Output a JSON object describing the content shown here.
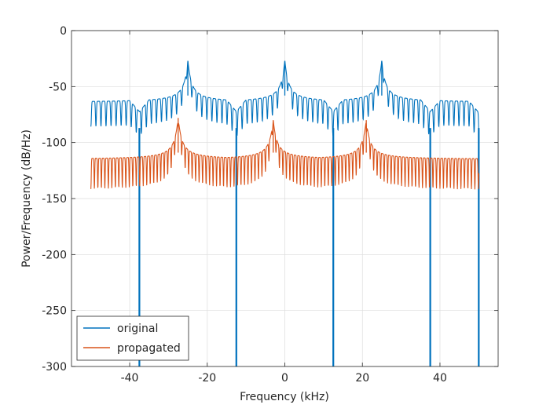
{
  "chart_data": {
    "type": "line",
    "title": "",
    "xlabel": "Frequency (kHz)",
    "ylabel": "Power/Frequency (dB/Hz)",
    "xlim": [
      -55,
      55
    ],
    "ylim": [
      -300,
      0
    ],
    "x_ticks": [
      -40,
      -20,
      0,
      20,
      40
    ],
    "y_ticks": [
      0,
      -50,
      -100,
      -150,
      -200,
      -250,
      -300
    ],
    "x_tick_labels": [
      "-40",
      "-20",
      "0",
      "20",
      "40"
    ],
    "y_tick_labels": [
      "0",
      "-50",
      "-100",
      "-150",
      "-200",
      "-250",
      "-300"
    ],
    "grid": true,
    "legend_position": "bottom-left",
    "series": [
      {
        "name": "original",
        "color": "#0072BD",
        "x_range": [
          -50,
          50
        ],
        "floor_upper": -64,
        "floor_lower": -87,
        "comb_spacing": 1.3,
        "peaks": [
          {
            "x": -25,
            "y": -27
          },
          {
            "x": 0,
            "y": -27
          },
          {
            "x": 25,
            "y": -27
          }
        ],
        "deep_nulls": [
          {
            "x": -37.5,
            "y": -300
          },
          {
            "x": -12.5,
            "y": -300
          },
          {
            "x": 12.5,
            "y": -300
          },
          {
            "x": 37.5,
            "y": -300
          },
          {
            "x": 50,
            "y": -300
          }
        ]
      },
      {
        "name": "propagated",
        "color": "#D95319",
        "x_range": [
          -50,
          50
        ],
        "floor_upper": -115,
        "floor_lower": -143,
        "comb_spacing": 0.9,
        "peaks": [
          {
            "x": -27.5,
            "y": -78
          },
          {
            "x": -3,
            "y": -80
          },
          {
            "x": 21,
            "y": -80
          }
        ],
        "deep_nulls": []
      }
    ]
  }
}
